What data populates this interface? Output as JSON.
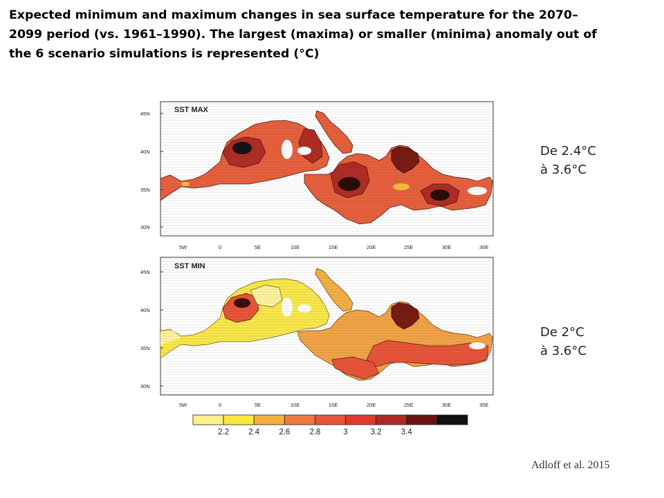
{
  "title_lines": [
    "Expected minimum and maximum changes in sea surface temperature for the 2070–",
    "2099 period (vs. 1961–1990). The largest (maxima) or smaller (minima) anomaly out of",
    "the 6 scenario simulations is represented (°C)"
  ],
  "panels": {
    "max": {
      "title": "SST MAX",
      "range_line1": "De 2.4°C",
      "range_line2": "à 3.6°C"
    },
    "min": {
      "title": "SST MIN",
      "range_line1": "De 2°C",
      "range_line2": "à 3.6°C"
    }
  },
  "axes": {
    "lat_labels": [
      "45N",
      "40N",
      "35N",
      "30N"
    ],
    "lon_labels": [
      "5W",
      "0",
      "5E",
      "10E",
      "15E",
      "20E",
      "25E",
      "30E",
      "35E"
    ]
  },
  "colorbar": {
    "colors": [
      "#fdf08a",
      "#fbe83c",
      "#f4b043",
      "#ee7840",
      "#e8553a",
      "#e03a30",
      "#b02a24",
      "#6a1410",
      "#111111"
    ],
    "labels": [
      "2.2",
      "2.4",
      "2.6",
      "2.8",
      "3",
      "3.2",
      "3.4"
    ]
  },
  "citation": "Adloff et al. 2015"
}
